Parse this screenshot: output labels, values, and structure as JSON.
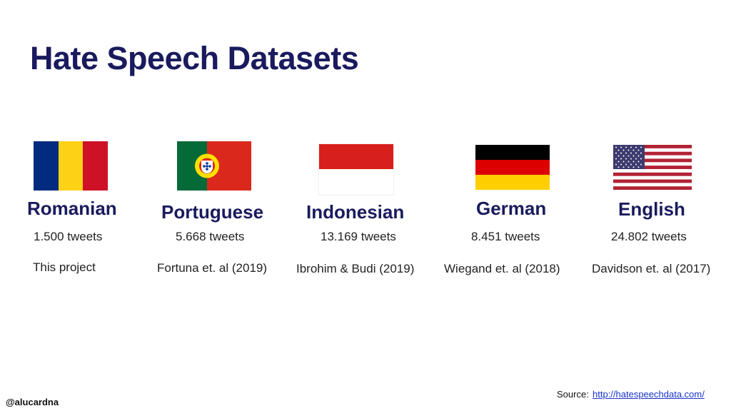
{
  "slide": {
    "title": "Hate Speech Datasets",
    "handle": "@alucardna",
    "source_label": "Source:",
    "source_link": "http://hatespeechdata.com/"
  },
  "datasets": [
    {
      "language": "Romanian",
      "tweets": "1.500 tweets",
      "reference": "This project",
      "flag": "romania-flag-icon"
    },
    {
      "language": "Portuguese",
      "tweets": "5.668 tweets",
      "reference": "Fortuna et. al (2019)",
      "flag": "portugal-flag-icon"
    },
    {
      "language": "Indonesian",
      "tweets": "13.169 tweets",
      "reference": "Ibrohim & Budi (2019)",
      "flag": "indonesia-flag-icon"
    },
    {
      "language": "German",
      "tweets": "8.451 tweets",
      "reference": "Wiegand et. al (2018)",
      "flag": "germany-flag-icon"
    },
    {
      "language": "English",
      "tweets": "24.802 tweets",
      "reference": "Davidson et. al (2017)",
      "flag": "usa-flag-icon"
    }
  ],
  "colors": {
    "title": "#1a1a5e",
    "link": "#1a33cc",
    "romania": [
      "#002b7f",
      "#fcd116",
      "#ce1126"
    ],
    "portugal": [
      "#046a38",
      "#da291c",
      "#ffe000"
    ],
    "indonesia": [
      "#d7201e",
      "#ffffff"
    ],
    "germany": [
      "#000000",
      "#dd0000",
      "#ffce00"
    ],
    "usa": [
      "#b22234",
      "#ffffff",
      "#3c3b6e"
    ]
  }
}
